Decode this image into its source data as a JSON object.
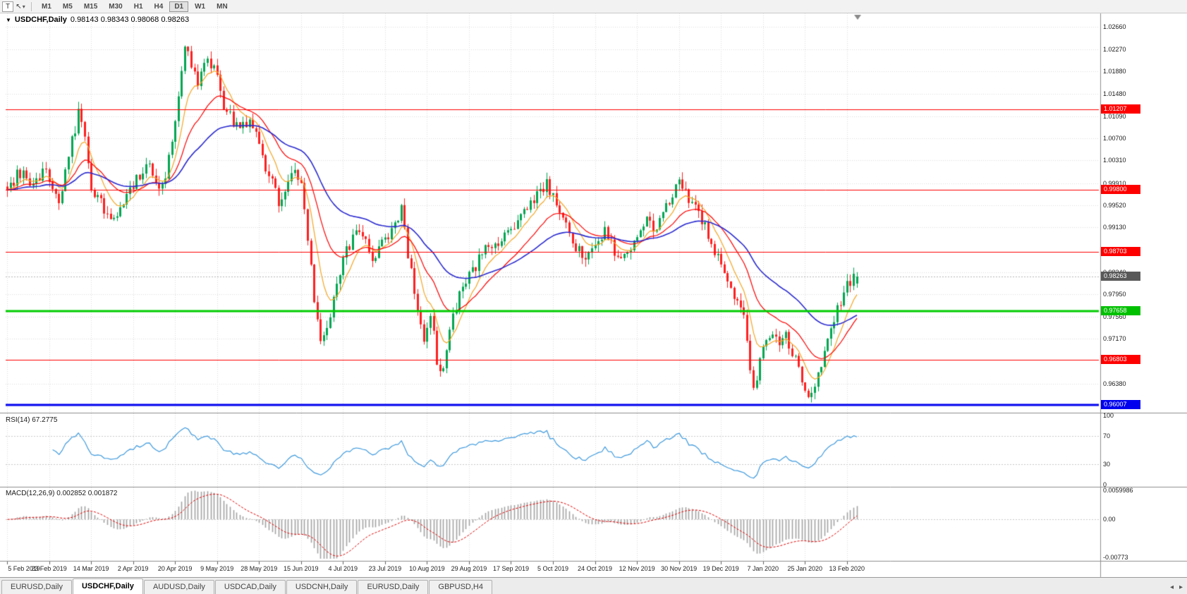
{
  "icons": {
    "one_click_toggle": "▼",
    "dropdown": "▾",
    "cursor": "↖",
    "scroll_left": "◂",
    "scroll_right": "▸"
  },
  "toolbar": {
    "text_tool_label": "T",
    "timeframes": [
      "M1",
      "M5",
      "M15",
      "M30",
      "H1",
      "H4",
      "D1",
      "W1",
      "MN"
    ],
    "active_timeframe": "D1"
  },
  "chart": {
    "symbol_title": "USDCHF,Daily",
    "ohlc_text": "0.98143 0.98343 0.98068 0.98263"
  },
  "chart_data": {
    "type": "candlestick",
    "symbol": "USDCHF",
    "period": "Daily",
    "bar_count": 264,
    "tick_interval_bars": 13,
    "last_candle": {
      "open": 0.98143,
      "high": 0.98343,
      "low": 0.98068,
      "close": 0.98263
    },
    "price_path": [
      [
        0,
        0.9985
      ],
      [
        4,
        1.001
      ],
      [
        8,
        0.9985
      ],
      [
        11,
        1.0015
      ],
      [
        13,
        1.0005
      ],
      [
        16,
        0.996
      ],
      [
        19,
        1.0045
      ],
      [
        22,
        1.011
      ],
      [
        24,
        1.007
      ],
      [
        26,
        0.9985
      ],
      [
        30,
        0.9945
      ],
      [
        33,
        0.992
      ],
      [
        37,
        0.9975
      ],
      [
        40,
        1.0
      ],
      [
        44,
        1.003
      ],
      [
        47,
        0.997
      ],
      [
        49,
        0.9995
      ],
      [
        51,
        1.007
      ],
      [
        53,
        1.015
      ],
      [
        55,
        1.0225
      ],
      [
        57,
        1.02
      ],
      [
        59,
        1.017
      ],
      [
        62,
        1.0215
      ],
      [
        64,
        1.0195
      ],
      [
        66,
        1.0145
      ],
      [
        69,
        1.0105
      ],
      [
        72,
        1.008
      ],
      [
        75,
        1.0105
      ],
      [
        78,
        1.006
      ],
      [
        80,
        1.002
      ],
      [
        82,
        0.999
      ],
      [
        84,
        0.996
      ],
      [
        86,
        0.9985
      ],
      [
        89,
        1.0015
      ],
      [
        91,
        0.999
      ],
      [
        93,
        0.99
      ],
      [
        95,
        0.979
      ],
      [
        97,
        0.9705
      ],
      [
        99,
        0.9745
      ],
      [
        101,
        0.978
      ],
      [
        104,
        0.9855
      ],
      [
        107,
        0.9895
      ],
      [
        110,
        0.9905
      ],
      [
        112,
        0.987
      ],
      [
        114,
        0.9855
      ],
      [
        116,
        0.9885
      ],
      [
        119,
        0.99
      ],
      [
        122,
        0.995
      ],
      [
        124,
        0.987
      ],
      [
        126,
        0.979
      ],
      [
        129,
        0.9715
      ],
      [
        131,
        0.9765
      ],
      [
        133,
        0.968
      ],
      [
        135,
        0.966
      ],
      [
        137,
        0.974
      ],
      [
        140,
        0.979
      ],
      [
        143,
        0.9825
      ],
      [
        146,
        0.9855
      ],
      [
        149,
        0.9885
      ],
      [
        152,
        0.987
      ],
      [
        155,
        0.9905
      ],
      [
        158,
        0.993
      ],
      [
        161,
        0.9945
      ],
      [
        164,
        0.997
      ],
      [
        167,
        0.999
      ],
      [
        169,
        0.9965
      ],
      [
        172,
        0.993
      ],
      [
        175,
        0.989
      ],
      [
        178,
        0.986
      ],
      [
        182,
        0.9875
      ],
      [
        185,
        0.9905
      ],
      [
        188,
        0.9875
      ],
      [
        191,
        0.9855
      ],
      [
        195,
        0.99
      ],
      [
        198,
        0.9925
      ],
      [
        201,
        0.9905
      ],
      [
        204,
        0.995
      ],
      [
        208,
        0.9995
      ],
      [
        211,
        0.996
      ],
      [
        214,
        0.9935
      ],
      [
        217,
        0.99
      ],
      [
        221,
        0.9845
      ],
      [
        224,
        0.981
      ],
      [
        227,
        0.9775
      ],
      [
        229,
        0.972
      ],
      [
        231,
        0.9625
      ],
      [
        234,
        0.9715
      ],
      [
        237,
        0.9735
      ],
      [
        239,
        0.97
      ],
      [
        241,
        0.972
      ],
      [
        243,
        0.969
      ],
      [
        245,
        0.966
      ],
      [
        247,
        0.963
      ],
      [
        249,
        0.9615
      ],
      [
        251,
        0.9655
      ],
      [
        253,
        0.97
      ],
      [
        255,
        0.973
      ],
      [
        257,
        0.9765
      ],
      [
        259,
        0.9795
      ],
      [
        261,
        0.982
      ],
      [
        263,
        0.9826
      ]
    ],
    "price_axis": {
      "min": 0.9588,
      "max": 1.029,
      "labels": [
        "1.02660",
        "1.02270",
        "1.01880",
        "1.01480",
        "1.01090",
        "1.00700",
        "1.00310",
        "0.99910",
        "0.99520",
        "0.99130",
        "0.98340",
        "0.97950",
        "0.97560",
        "0.97170",
        "0.96380"
      ],
      "boxed_labels": [
        {
          "text": "1.01207",
          "color": "#ff0000"
        },
        {
          "text": "0.99800",
          "color": "#ff0000"
        },
        {
          "text": "0.98703",
          "color": "#ff0000"
        },
        {
          "text": "0.98263",
          "color": "#595959"
        },
        {
          "text": "0.97658",
          "color": "#00c000"
        },
        {
          "text": "0.96803",
          "color": "#ff0000"
        },
        {
          "text": "0.96007",
          "color": "#0000ee"
        }
      ]
    },
    "horizontal_lines": [
      {
        "price": 1.01207,
        "color": "#ff0000",
        "width": 1
      },
      {
        "price": 0.998,
        "color": "#ff0000",
        "width": 1
      },
      {
        "price": 0.98703,
        "color": "#ff0000",
        "width": 1
      },
      {
        "price": 0.97658,
        "color": "#00cc00",
        "width": 3
      },
      {
        "price": 0.96803,
        "color": "#ff0000",
        "width": 1
      },
      {
        "price": 0.96007,
        "color": "#0000ee",
        "width": 3
      }
    ],
    "current_price": 0.98263,
    "moving_averages": [
      {
        "period": 8,
        "color": "#f5a623"
      },
      {
        "period": 20,
        "color": "#ff0000"
      },
      {
        "period": 45,
        "color": "#2a2ad0"
      }
    ],
    "candle_colors": {
      "up": "#00a651",
      "down": "#ff1f1f"
    },
    "x_axis_dates": [
      "5 Feb 2019",
      "23 Feb 2019",
      "14 Mar 2019",
      "2 Apr 2019",
      "20 Apr 2019",
      "9 May 2019",
      "28 May 2019",
      "15 Jun 2019",
      "4 Jul 2019",
      "23 Jul 2019",
      "10 Aug 2019",
      "29 Aug 2019",
      "17 Sep 2019",
      "5 Oct 2019",
      "24 Oct 2019",
      "12 Nov 2019",
      "30 Nov 2019",
      "19 Dec 2019",
      "7 Jan 2020",
      "25 Jan 2020",
      "13 Feb 2020"
    ],
    "rsi": {
      "label": "RSI(14) 67.2775",
      "period": 14,
      "last_value": 67.2775,
      "line_color": "#3e9ade",
      "levels": [
        70,
        30
      ],
      "axis_labels": [
        {
          "text": "100",
          "value": 100
        },
        {
          "text": "70",
          "value": 70
        },
        {
          "text": "30",
          "value": 30
        },
        {
          "text": "0",
          "value": 0
        }
      ]
    },
    "macd": {
      "label": "MACD(12,26,9) 0.002852 0.001872",
      "fast": 12,
      "slow": 26,
      "signal": 9,
      "last_macd": 0.002852,
      "last_signal": 0.001872,
      "histogram_color": "#a3a3a3",
      "signal_color": "#e00000",
      "max": 0.0059986,
      "min": -0.00773,
      "axis_labels": [
        {
          "text": "0.0059986",
          "value": 0.0059986
        },
        {
          "text": "0.00",
          "value": 0
        },
        {
          "text": "-0.00773",
          "value": -0.00773
        }
      ]
    }
  },
  "bottom_tabs": {
    "tabs": [
      {
        "label": "EURUSD,Daily",
        "active": false
      },
      {
        "label": "USDCHF,Daily",
        "active": true
      },
      {
        "label": "AUDUSD,Daily",
        "active": false
      },
      {
        "label": "USDCAD,Daily",
        "active": false
      },
      {
        "label": "USDCNH,Daily",
        "active": false
      },
      {
        "label": "EURUSD,Daily",
        "active": false
      },
      {
        "label": "GBPUSD,H4",
        "active": false
      }
    ]
  }
}
